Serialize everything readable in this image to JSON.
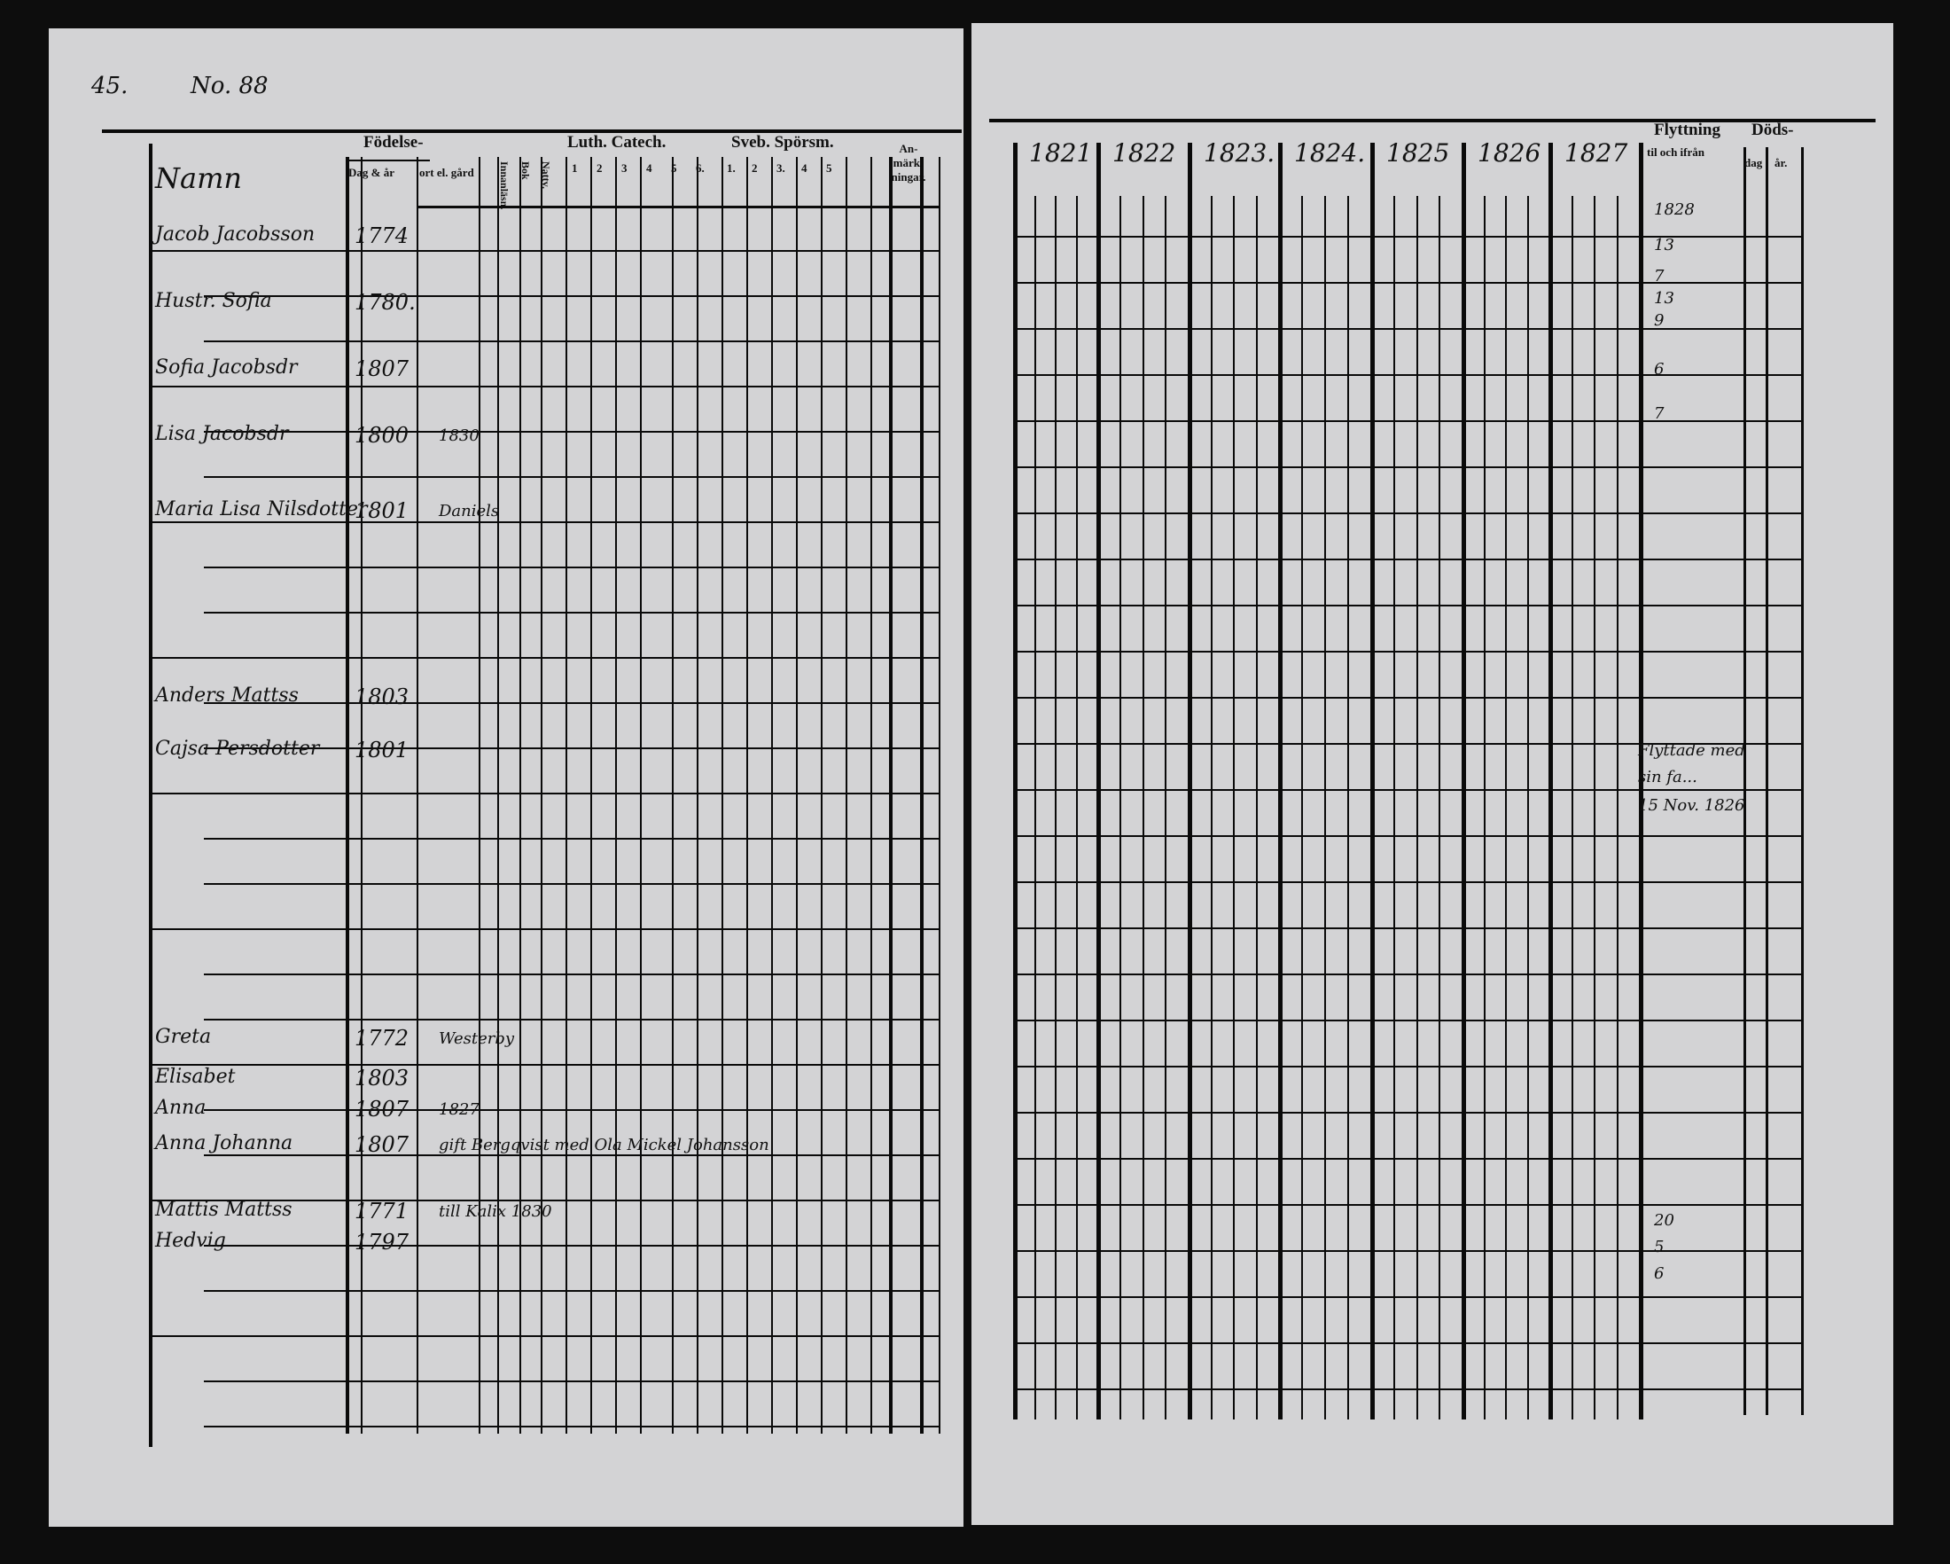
{
  "left_page": {
    "page_number": "45.",
    "heading_hand": "No. 88",
    "headers": {
      "names": "Namn",
      "birth": "Födelse-",
      "birth_sub": [
        "Dag & år",
        "ort el. gård"
      ],
      "luth_catech": "Luth. Catech.",
      "luth_cols": [
        "1",
        "2",
        "3",
        "4",
        "5",
        "6."
      ],
      "svebelii": "Sveb. Spörsm.",
      "svebelii_cols": [
        "1.",
        "2",
        "3.",
        "4",
        "5"
      ],
      "vertical_cols": [
        "Innanläsn.",
        "Bok",
        "Nattv."
      ],
      "remarks": "An-märk-ningar."
    },
    "entries": [
      {
        "name": "Jacob Jacobsson",
        "year": "1774"
      },
      {
        "name": "Hustr. Sofia",
        "year": "1780."
      },
      {
        "name": "Sofia Jacobsdr",
        "year": "1807"
      },
      {
        "name": "Lisa Jacobsdr",
        "year": "1800",
        "note": "1830"
      },
      {
        "name": "Maria Lisa Nilsdotter",
        "year": "1801",
        "note": "Daniels"
      },
      {
        "name": "Anders Mattss",
        "year": "1803"
      },
      {
        "name": "Cajsa Persdotter",
        "year": "1801"
      },
      {
        "name": "Greta",
        "year": "1772",
        "note": "Westerby"
      },
      {
        "name": "Elisabet",
        "year": "1803"
      },
      {
        "name": "Anna",
        "year": "1807",
        "note": "1827"
      },
      {
        "name": "Anna Johanna",
        "year": "1807",
        "note": "gift Bergqvist med Ola Mickel Johansson"
      },
      {
        "name": "Mattis Mattss",
        "year": "1771",
        "note": "till Kalix 1830"
      },
      {
        "name": "Hedvig",
        "year": "1797"
      }
    ]
  },
  "right_page": {
    "years": [
      "1821",
      "1822",
      "1823.",
      "1824.",
      "1825",
      "1826",
      "1827"
    ],
    "moving_header": "Flyttning",
    "moving_sub": "til och ifrån",
    "death_header": "Döds-",
    "death_sub": [
      "dag",
      "år."
    ],
    "moving_year": "1828",
    "notes": [
      "Flyttade med",
      "sin fa...",
      "15 Nov. 1826"
    ],
    "marks": [
      "13",
      "7",
      "13",
      "9",
      "6",
      "7",
      "20",
      "5",
      "6"
    ]
  }
}
